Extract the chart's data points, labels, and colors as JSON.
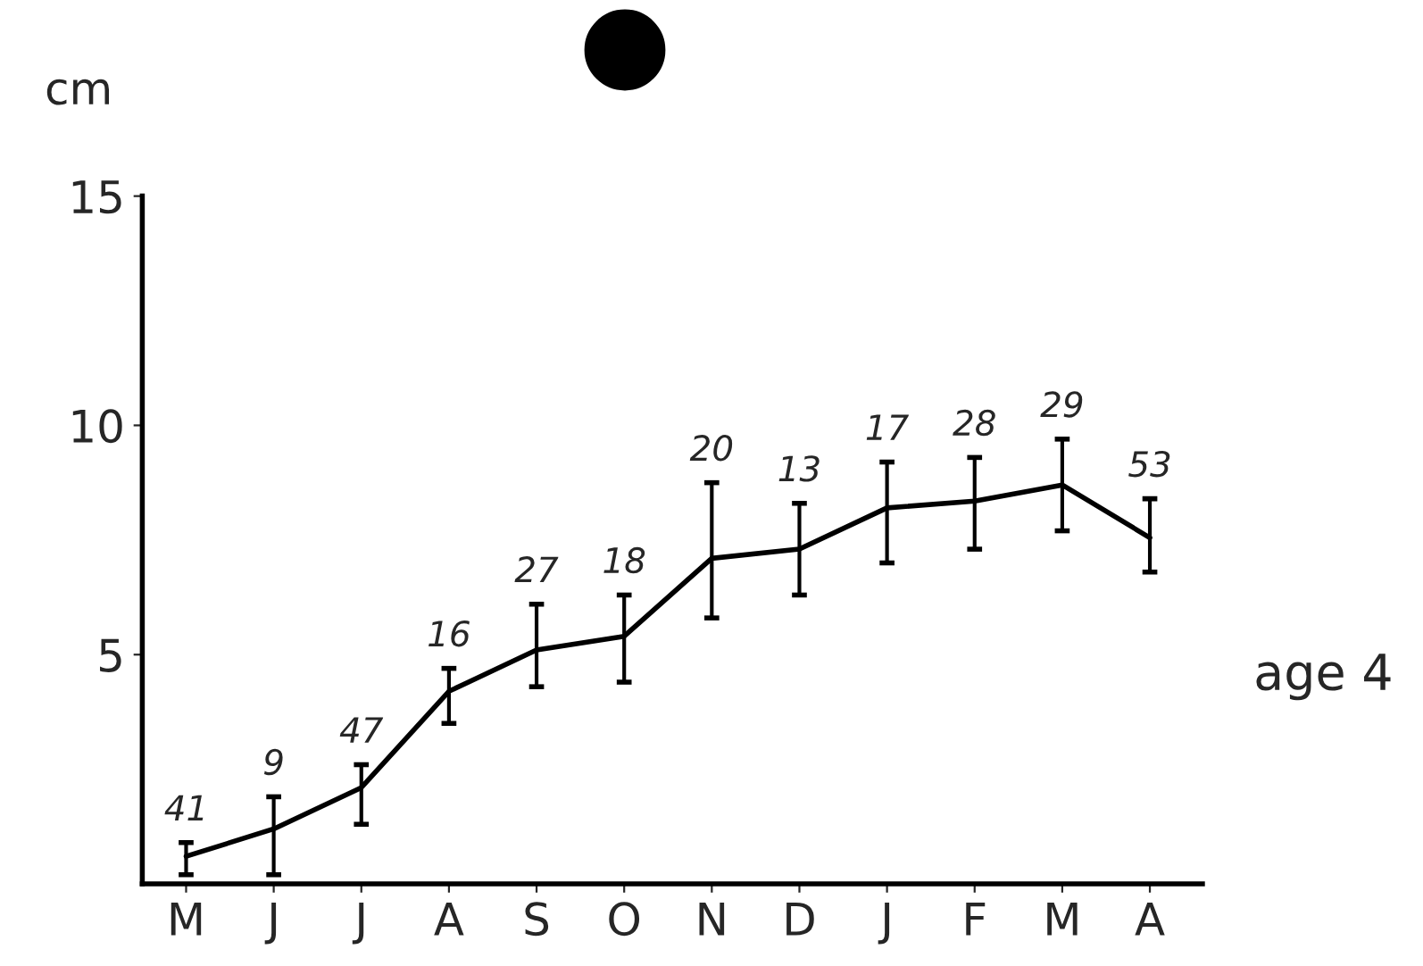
{
  "chart_data": {
    "type": "line",
    "ylabel": "cm",
    "categories": [
      "M",
      "J",
      "J",
      "A",
      "S",
      "O",
      "N",
      "D",
      "J",
      "F",
      "M",
      "A"
    ],
    "values": [
      0.6,
      1.2,
      2.1,
      4.2,
      5.1,
      5.4,
      7.1,
      7.3,
      8.2,
      8.35,
      8.7,
      7.55
    ],
    "errors": [
      [
        0.2,
        0.9
      ],
      [
        0.2,
        1.9
      ],
      [
        1.3,
        2.6
      ],
      [
        3.5,
        4.7
      ],
      [
        4.3,
        6.1
      ],
      [
        4.4,
        6.3
      ],
      [
        5.8,
        8.75
      ],
      [
        6.3,
        8.3
      ],
      [
        7.0,
        9.2
      ],
      [
        7.3,
        9.3
      ],
      [
        7.7,
        9.7
      ],
      [
        6.8,
        8.4
      ]
    ],
    "color": "#000000",
    "marker": "none",
    "line_style": "solid",
    "grid": false,
    "legend": false,
    "ylim": [
      0,
      15
    ],
    "yticks": [
      5,
      10,
      15
    ],
    "annotations": [
      "41",
      "9",
      "47",
      "16",
      "27",
      "18",
      "20",
      "13",
      "17",
      "28",
      "29",
      "53",
      "age 4"
    ]
  }
}
